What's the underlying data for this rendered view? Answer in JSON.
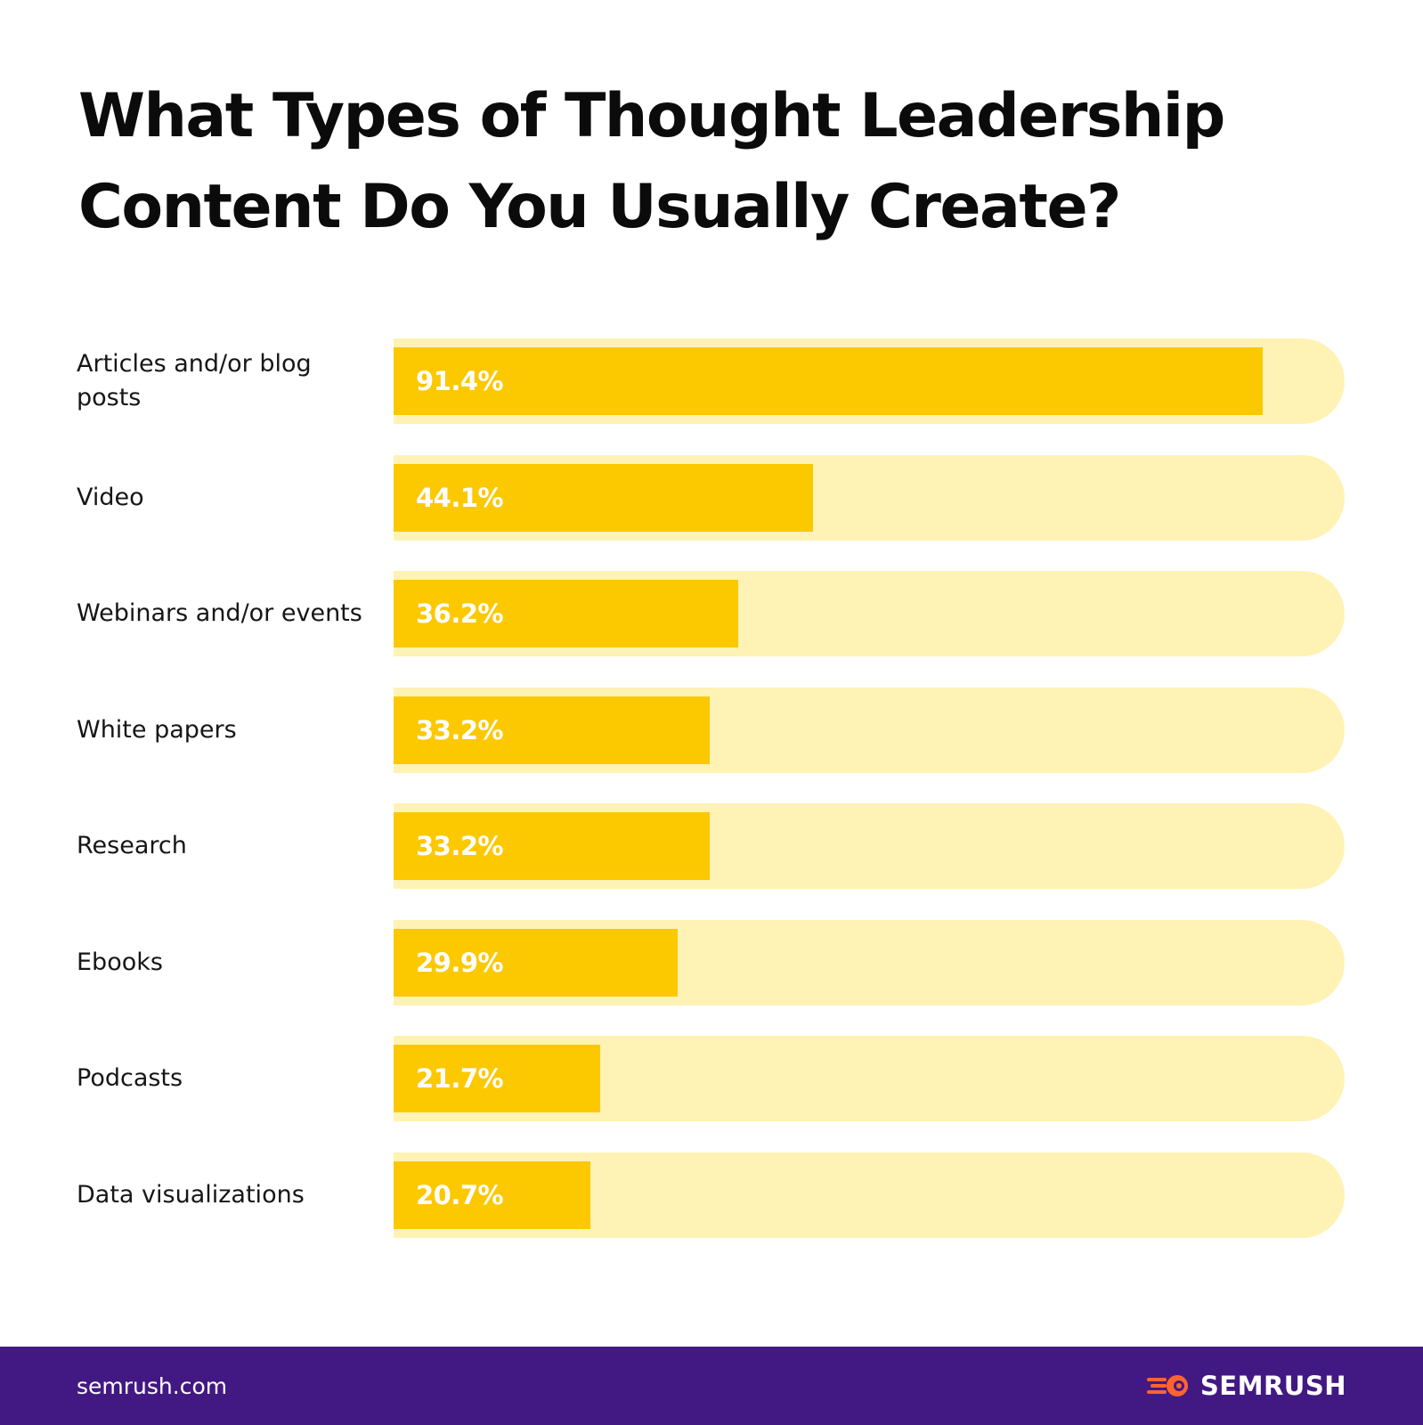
{
  "chart_data": {
    "type": "bar",
    "orientation": "horizontal",
    "title_lines": [
      "What Types of Thought Leadership",
      "Content Do You Usually Create?"
    ],
    "categories": [
      "Articles and/or blog posts",
      "Video",
      "Webinars and/or events",
      "White papers",
      "Research",
      "Ebooks",
      "Podcasts",
      "Data visualizations"
    ],
    "values": [
      91.4,
      44.1,
      36.2,
      33.2,
      33.2,
      29.9,
      21.7,
      20.7
    ],
    "value_labels": [
      "91.4%",
      "44.1%",
      "36.2%",
      "33.2%",
      "33.2%",
      "29.9%",
      "21.7%",
      "20.7%"
    ],
    "xlim": [
      0,
      100
    ],
    "grid": false,
    "legend": "none",
    "colors": {
      "bar": "#fcc800",
      "track": "#fef3b5"
    }
  },
  "footer": {
    "url": "semrush.com",
    "brand": "SEMRUSH",
    "brand_icon": "semrush-fireball-icon",
    "background": "#421983",
    "icon_color": "#ff642d"
  }
}
